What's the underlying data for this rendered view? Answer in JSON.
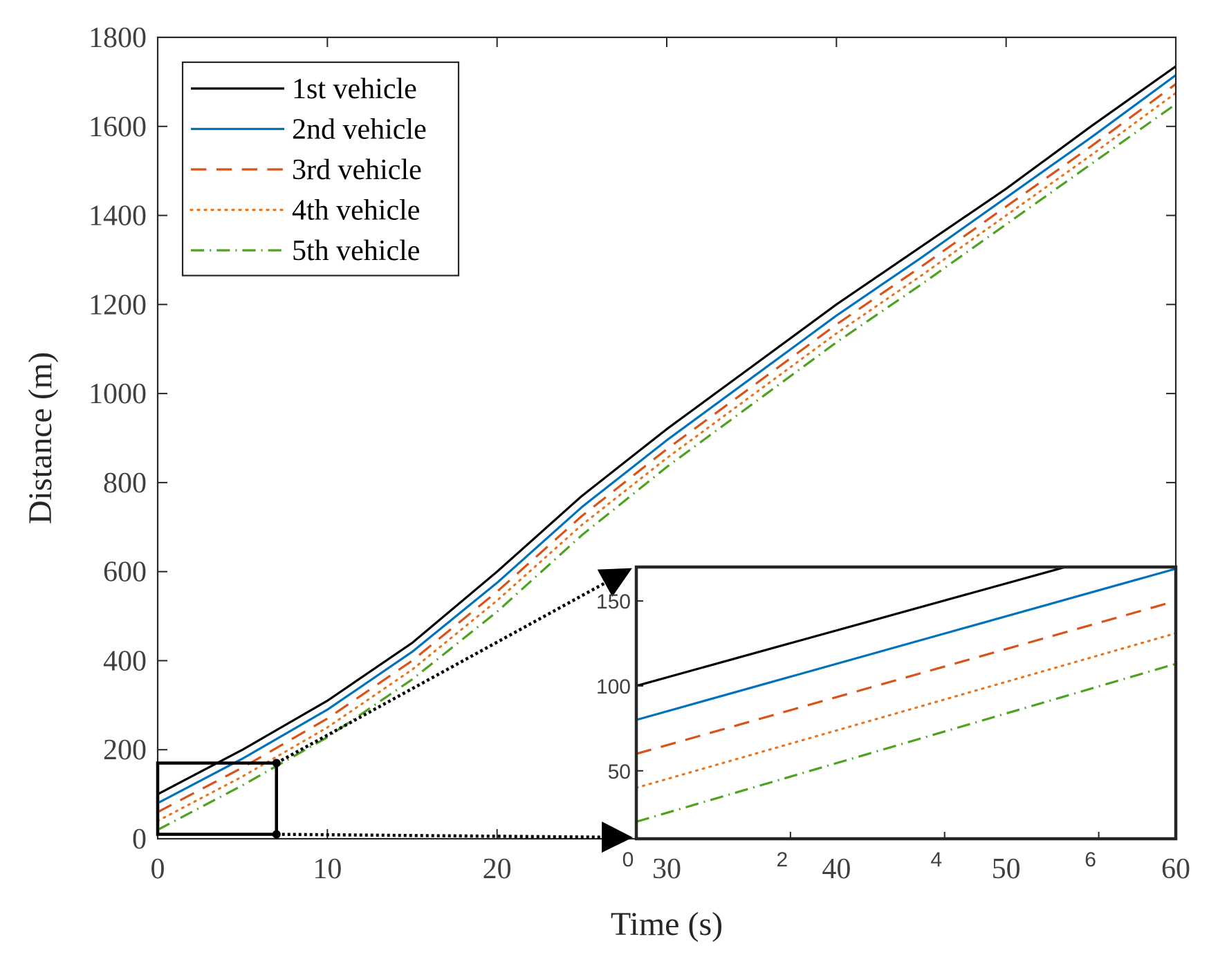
{
  "chart_data": [
    {
      "type": "line",
      "xlabel": "Time (s)",
      "ylabel": "Distance (m)",
      "xlim": [
        0,
        60
      ],
      "ylim": [
        0,
        1800
      ],
      "xticks": [
        "0",
        "10",
        "20",
        "30",
        "40",
        "50",
        "60"
      ],
      "yticks": [
        "0",
        "200",
        "400",
        "600",
        "800",
        "1000",
        "1200",
        "1400",
        "1600",
        "1800"
      ],
      "grid": false,
      "legend_position": "top-left",
      "x": [
        0,
        5,
        10,
        15,
        20,
        25,
        30,
        35,
        40,
        45,
        50,
        55,
        60
      ],
      "series": [
        {
          "name": "1st vehicle",
          "color": "#000000",
          "style": "solid",
          "values": [
            100,
            200,
            310,
            440,
            600,
            770,
            920,
            1060,
            1200,
            1330,
            1460,
            1600,
            1735
          ]
        },
        {
          "name": "2nd vehicle",
          "color": "#0072BD",
          "style": "solid",
          "values": [
            80,
            180,
            290,
            420,
            575,
            745,
            895,
            1035,
            1175,
            1305,
            1440,
            1575,
            1715
          ]
        },
        {
          "name": "3rd vehicle",
          "color": "#D95319",
          "style": "dashed",
          "values": [
            60,
            160,
            270,
            400,
            555,
            725,
            875,
            1015,
            1155,
            1285,
            1420,
            1555,
            1695
          ]
        },
        {
          "name": "4th vehicle",
          "color": "#E8761E",
          "style": "dotted",
          "values": [
            40,
            140,
            250,
            380,
            535,
            705,
            855,
            995,
            1135,
            1265,
            1400,
            1535,
            1675
          ]
        },
        {
          "name": "5th vehicle",
          "color": "#4DA31F",
          "style": "dashdot",
          "values": [
            20,
            120,
            228,
            358,
            510,
            682,
            835,
            975,
            1115,
            1245,
            1380,
            1515,
            1650
          ]
        }
      ]
    },
    {
      "type": "line",
      "inset": true,
      "xlim": [
        0,
        7
      ],
      "ylim": [
        10,
        170
      ],
      "xticks": [
        "0",
        "2",
        "4",
        "6"
      ],
      "yticks": [
        "50",
        "100",
        "150"
      ],
      "x": [
        0,
        7
      ],
      "series": [
        {
          "name": "1st vehicle",
          "color": "#000000",
          "style": "solid",
          "values": [
            100,
            188
          ]
        },
        {
          "name": "2nd vehicle",
          "color": "#0072BD",
          "style": "solid",
          "values": [
            80,
            169
          ]
        },
        {
          "name": "3rd vehicle",
          "color": "#D95319",
          "style": "dashed",
          "values": [
            60,
            150
          ]
        },
        {
          "name": "4th vehicle",
          "color": "#E8761E",
          "style": "dotted",
          "values": [
            40,
            131
          ]
        },
        {
          "name": "5th vehicle",
          "color": "#4DA31F",
          "style": "dashdot",
          "values": [
            20,
            113
          ]
        }
      ]
    }
  ]
}
